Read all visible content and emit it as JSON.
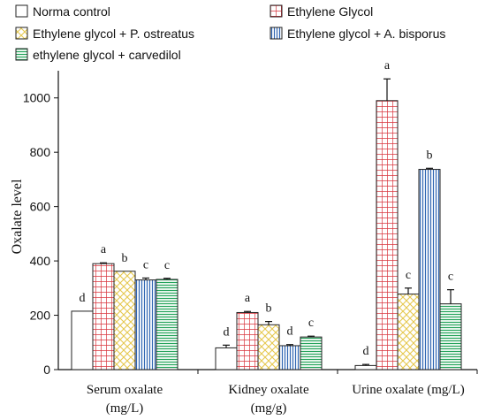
{
  "chart_data": {
    "type": "bar",
    "categories": [
      "Serum oxalate (mg/L)",
      "Kidney oxalate (mg/g)",
      "Urine oxalate (mg/L)"
    ],
    "category_lines": [
      [
        "Serum oxalate",
        "(mg/L)"
      ],
      [
        "Kidney oxalate",
        "(mg/g)"
      ],
      [
        "Urine oxalate (mg/L)"
      ]
    ],
    "ylabel": "Oxalate level",
    "ylim": [
      0,
      1100
    ],
    "yticks": [
      "0",
      "200",
      "400",
      "600",
      "800",
      "1000"
    ],
    "grid": false,
    "legend_position": "top",
    "series": [
      {
        "name": "Norma control",
        "values": [
          215,
          80,
          15
        ],
        "errors": [
          0,
          10,
          4
        ],
        "labels": [
          "d",
          "d",
          "d"
        ],
        "pattern": "plain",
        "color": "#ffffff"
      },
      {
        "name": "Ethylene Glycol",
        "values": [
          390,
          210,
          990
        ],
        "errors": [
          3,
          4,
          80
        ],
        "labels": [
          "a",
          "a",
          "a"
        ],
        "pattern": "grid",
        "color": "#d9363e"
      },
      {
        "name": "Ethylene glycol + P. ostreatus",
        "values": [
          362,
          165,
          278
        ],
        "errors": [
          0,
          12,
          22
        ],
        "labels": [
          "b",
          "b",
          "c"
        ],
        "pattern": "diamond",
        "color": "#e6c84f"
      },
      {
        "name": "Ethylene glycol + A. bisporus",
        "values": [
          330,
          88,
          737
        ],
        "errors": [
          7,
          4,
          4
        ],
        "labels": [
          "c",
          "d",
          "b"
        ],
        "pattern": "vertical",
        "color": "#2f66b3"
      },
      {
        "name": "ethylene glycol + carvedilol",
        "values": [
          332,
          120,
          242
        ],
        "errors": [
          4,
          3,
          52
        ],
        "labels": [
          "c",
          "c",
          "c"
        ],
        "pattern": "horizontal",
        "color": "#23a35a"
      }
    ]
  }
}
